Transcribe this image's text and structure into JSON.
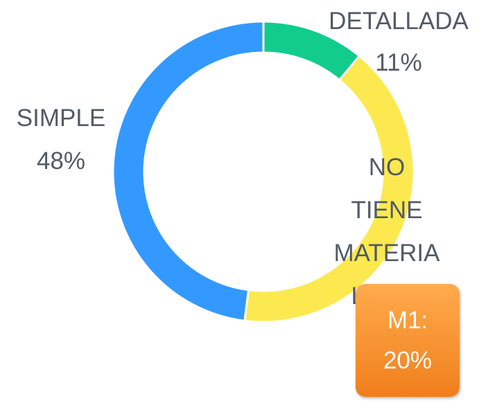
{
  "chart_data": {
    "type": "donut",
    "categories": [
      "DETALLADA",
      "NO TIENE MATERIALIDAD",
      "SIMPLE"
    ],
    "values": [
      11,
      41,
      48
    ],
    "value_labels": [
      "11%",
      null,
      "48%"
    ],
    "colors": [
      "#12cc8c",
      "#fce94f",
      "#3399ff"
    ],
    "annotation": "M1: 20%"
  }
}
